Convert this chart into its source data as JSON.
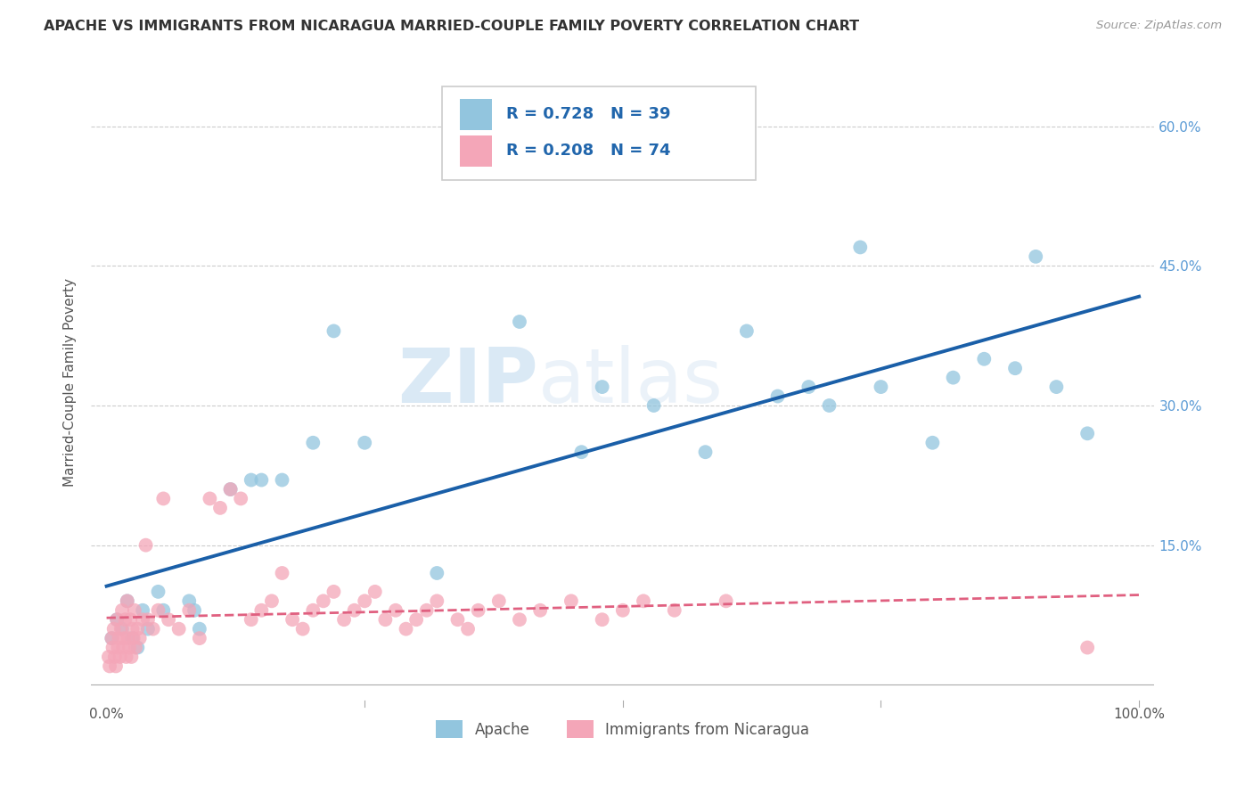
{
  "title": "APACHE VS IMMIGRANTS FROM NICARAGUA MARRIED-COUPLE FAMILY POVERTY CORRELATION CHART",
  "source": "Source: ZipAtlas.com",
  "ylabel_label": "Married-Couple Family Poverty",
  "legend_label1": "Apache",
  "legend_label2": "Immigrants from Nicaragua",
  "R1": 0.728,
  "N1": 39,
  "R2": 0.208,
  "N2": 74,
  "color_blue": "#92c5de",
  "color_pink": "#f4a6b8",
  "color_blue_line": "#1a5fa8",
  "color_pink_line": "#e06080",
  "watermark_zip": "ZIP",
  "watermark_atlas": "atlas",
  "apache_x": [
    0.5,
    1.0,
    1.5,
    2.0,
    2.5,
    3.0,
    3.5,
    4.0,
    5.0,
    5.5,
    8.0,
    8.5,
    9.0,
    12.0,
    14.0,
    15.0,
    17.0,
    20.0,
    22.0,
    25.0,
    32.0,
    40.0,
    46.0,
    48.0,
    53.0,
    58.0,
    62.0,
    65.0,
    68.0,
    70.0,
    73.0,
    75.0,
    80.0,
    82.0,
    85.0,
    88.0,
    90.0,
    92.0,
    95.0
  ],
  "apache_y": [
    5.0,
    7.0,
    6.0,
    9.0,
    5.0,
    4.0,
    8.0,
    6.0,
    10.0,
    8.0,
    9.0,
    8.0,
    6.0,
    21.0,
    22.0,
    22.0,
    22.0,
    26.0,
    38.0,
    26.0,
    12.0,
    39.0,
    25.0,
    32.0,
    30.0,
    25.0,
    38.0,
    31.0,
    32.0,
    30.0,
    47.0,
    32.0,
    26.0,
    33.0,
    35.0,
    34.0,
    46.0,
    32.0,
    27.0
  ],
  "nicaragua_x": [
    0.2,
    0.3,
    0.5,
    0.6,
    0.7,
    0.8,
    0.9,
    1.0,
    1.1,
    1.2,
    1.3,
    1.4,
    1.5,
    1.6,
    1.7,
    1.8,
    1.9,
    2.0,
    2.1,
    2.2,
    2.3,
    2.4,
    2.5,
    2.6,
    2.7,
    2.8,
    3.0,
    3.2,
    3.5,
    3.8,
    4.0,
    4.5,
    5.0,
    5.5,
    6.0,
    7.0,
    8.0,
    9.0,
    10.0,
    11.0,
    12.0,
    13.0,
    14.0,
    15.0,
    16.0,
    17.0,
    18.0,
    19.0,
    20.0,
    21.0,
    22.0,
    23.0,
    24.0,
    25.0,
    26.0,
    27.0,
    28.0,
    29.0,
    30.0,
    31.0,
    32.0,
    34.0,
    35.0,
    36.0,
    38.0,
    40.0,
    42.0,
    45.0,
    48.0,
    50.0,
    52.0,
    55.0,
    60.0,
    95.0
  ],
  "nicaragua_y": [
    3.0,
    2.0,
    5.0,
    4.0,
    6.0,
    3.0,
    2.0,
    7.0,
    4.0,
    5.0,
    3.0,
    6.0,
    8.0,
    4.0,
    5.0,
    7.0,
    3.0,
    9.0,
    5.0,
    4.0,
    7.0,
    3.0,
    6.0,
    5.0,
    8.0,
    4.0,
    6.0,
    5.0,
    7.0,
    15.0,
    7.0,
    6.0,
    8.0,
    20.0,
    7.0,
    6.0,
    8.0,
    5.0,
    20.0,
    19.0,
    21.0,
    20.0,
    7.0,
    8.0,
    9.0,
    12.0,
    7.0,
    6.0,
    8.0,
    9.0,
    10.0,
    7.0,
    8.0,
    9.0,
    10.0,
    7.0,
    8.0,
    6.0,
    7.0,
    8.0,
    9.0,
    7.0,
    6.0,
    8.0,
    9.0,
    7.0,
    8.0,
    9.0,
    7.0,
    8.0,
    9.0,
    8.0,
    9.0,
    4.0
  ]
}
